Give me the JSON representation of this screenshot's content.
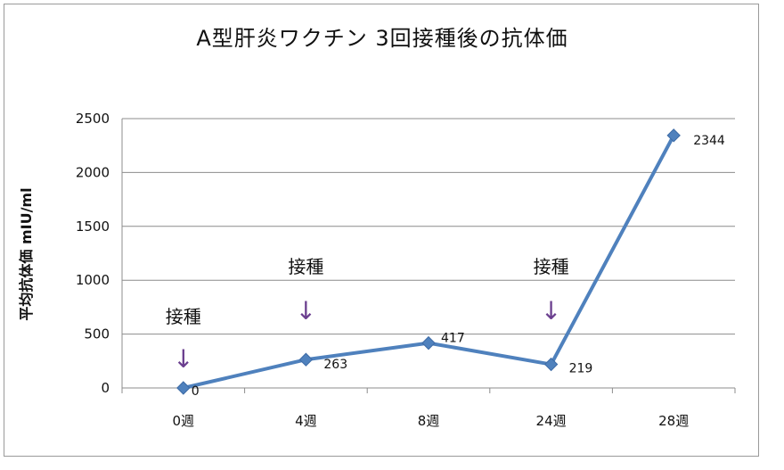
{
  "chart_data": {
    "type": "line",
    "title": "A型肝炎ワクチン 3回接種後の抗体価",
    "xlabel": "",
    "ylabel": "平均抗体価 mIU/ml",
    "categories": [
      "0週",
      "4週",
      "8週",
      "24週",
      "28週"
    ],
    "series": [
      {
        "values": [
          0,
          263,
          417,
          219,
          2344
        ],
        "data_labels": [
          "0",
          "263",
          "417",
          "219",
          "2344"
        ]
      }
    ],
    "ylim": [
      0,
      2500
    ],
    "yticks": [
      "0",
      "500",
      "1000",
      "1500",
      "2000",
      "2500"
    ],
    "grid": true,
    "legend": "none",
    "line_color": "#4f81bd",
    "annotations": [
      {
        "category_index": 0,
        "text": "接種",
        "arrow": "↓"
      },
      {
        "category_index": 1,
        "text": "接種",
        "arrow": "↓"
      },
      {
        "category_index": 3,
        "text": "接種",
        "arrow": "↓"
      }
    ]
  }
}
